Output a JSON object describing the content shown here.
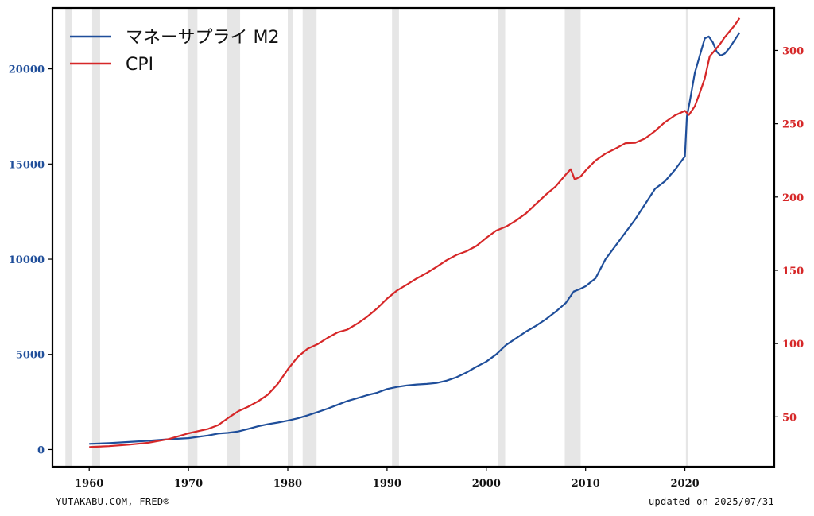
{
  "chart_data": {
    "type": "line",
    "series": [
      {
        "name": "マネーサプライ M2",
        "axis": "left",
        "color": "#1f4e9a",
        "points": [
          [
            1960.0,
            300
          ],
          [
            1962.0,
            340
          ],
          [
            1964.0,
            400
          ],
          [
            1966.0,
            460
          ],
          [
            1968.0,
            540
          ],
          [
            1970.0,
            600
          ],
          [
            1972.0,
            740
          ],
          [
            1973.0,
            840
          ],
          [
            1974.0,
            880
          ],
          [
            1975.0,
            950
          ],
          [
            1976.0,
            1080
          ],
          [
            1977.0,
            1220
          ],
          [
            1978.0,
            1330
          ],
          [
            1979.0,
            1420
          ],
          [
            1980.0,
            1520
          ],
          [
            1981.0,
            1640
          ],
          [
            1982.0,
            1800
          ],
          [
            1983.0,
            1970
          ],
          [
            1984.0,
            2150
          ],
          [
            1985.0,
            2350
          ],
          [
            1986.0,
            2550
          ],
          [
            1987.0,
            2700
          ],
          [
            1988.0,
            2860
          ],
          [
            1989.0,
            2990
          ],
          [
            1990.0,
            3180
          ],
          [
            1991.0,
            3290
          ],
          [
            1992.0,
            3370
          ],
          [
            1993.0,
            3420
          ],
          [
            1994.0,
            3450
          ],
          [
            1995.0,
            3500
          ],
          [
            1996.0,
            3620
          ],
          [
            1997.0,
            3800
          ],
          [
            1998.0,
            4050
          ],
          [
            1999.0,
            4350
          ],
          [
            2000.0,
            4620
          ],
          [
            2001.0,
            5000
          ],
          [
            2002.0,
            5500
          ],
          [
            2003.0,
            5850
          ],
          [
            2004.0,
            6200
          ],
          [
            2005.0,
            6500
          ],
          [
            2006.0,
            6850
          ],
          [
            2007.0,
            7250
          ],
          [
            2008.0,
            7700
          ],
          [
            2008.8,
            8300
          ],
          [
            2009.5,
            8450
          ],
          [
            2010.0,
            8580
          ],
          [
            2011.0,
            9000
          ],
          [
            2012.0,
            10000
          ],
          [
            2013.0,
            10700
          ],
          [
            2014.0,
            11400
          ],
          [
            2015.0,
            12100
          ],
          [
            2016.0,
            12900
          ],
          [
            2017.0,
            13700
          ],
          [
            2018.0,
            14100
          ],
          [
            2019.0,
            14700
          ],
          [
            2020.0,
            15400
          ],
          [
            2020.2,
            17500
          ],
          [
            2020.5,
            18300
          ],
          [
            2021.0,
            19800
          ],
          [
            2021.5,
            20700
          ],
          [
            2022.0,
            21600
          ],
          [
            2022.4,
            21700
          ],
          [
            2022.8,
            21400
          ],
          [
            2023.2,
            20900
          ],
          [
            2023.6,
            20700
          ],
          [
            2024.0,
            20800
          ],
          [
            2024.5,
            21100
          ],
          [
            2025.0,
            21500
          ],
          [
            2025.5,
            21900
          ]
        ]
      },
      {
        "name": "CPI",
        "axis": "right",
        "color": "#d62728",
        "points": [
          [
            1960.0,
            29.4
          ],
          [
            1962.0,
            30.0
          ],
          [
            1964.0,
            31.0
          ],
          [
            1966.0,
            32.4
          ],
          [
            1968.0,
            34.8
          ],
          [
            1970.0,
            38.8
          ],
          [
            1972.0,
            41.8
          ],
          [
            1973.0,
            44.4
          ],
          [
            1974.0,
            49.3
          ],
          [
            1975.0,
            53.8
          ],
          [
            1976.0,
            56.9
          ],
          [
            1977.0,
            60.6
          ],
          [
            1978.0,
            65.2
          ],
          [
            1979.0,
            72.6
          ],
          [
            1980.0,
            82.4
          ],
          [
            1981.0,
            90.9
          ],
          [
            1982.0,
            96.5
          ],
          [
            1983.0,
            99.6
          ],
          [
            1984.0,
            103.9
          ],
          [
            1985.0,
            107.6
          ],
          [
            1986.0,
            109.6
          ],
          [
            1987.0,
            113.6
          ],
          [
            1988.0,
            118.3
          ],
          [
            1989.0,
            124.0
          ],
          [
            1990.0,
            130.7
          ],
          [
            1991.0,
            136.2
          ],
          [
            1992.0,
            140.3
          ],
          [
            1993.0,
            144.5
          ],
          [
            1994.0,
            148.2
          ],
          [
            1995.0,
            152.4
          ],
          [
            1996.0,
            156.9
          ],
          [
            1997.0,
            160.5
          ],
          [
            1998.0,
            163.0
          ],
          [
            1999.0,
            166.6
          ],
          [
            2000.0,
            172.2
          ],
          [
            2001.0,
            177.1
          ],
          [
            2002.0,
            179.9
          ],
          [
            2003.0,
            184.0
          ],
          [
            2004.0,
            188.9
          ],
          [
            2005.0,
            195.3
          ],
          [
            2006.0,
            201.6
          ],
          [
            2007.0,
            207.3
          ],
          [
            2008.0,
            215.3
          ],
          [
            2008.5,
            219.0
          ],
          [
            2008.9,
            212.0
          ],
          [
            2009.5,
            214.0
          ],
          [
            2010.0,
            218.1
          ],
          [
            2011.0,
            224.9
          ],
          [
            2012.0,
            229.6
          ],
          [
            2013.0,
            233.0
          ],
          [
            2014.0,
            236.7
          ],
          [
            2015.0,
            237.0
          ],
          [
            2016.0,
            240.0
          ],
          [
            2017.0,
            245.1
          ],
          [
            2018.0,
            251.1
          ],
          [
            2019.0,
            255.7
          ],
          [
            2020.0,
            258.8
          ],
          [
            2020.4,
            256.0
          ],
          [
            2021.0,
            262.0
          ],
          [
            2021.5,
            271.0
          ],
          [
            2022.0,
            281.0
          ],
          [
            2022.5,
            296.0
          ],
          [
            2023.0,
            300.0
          ],
          [
            2023.5,
            304.0
          ],
          [
            2024.0,
            309.0
          ],
          [
            2024.5,
            313.0
          ],
          [
            2025.0,
            317.0
          ],
          [
            2025.5,
            322.0
          ]
        ]
      }
    ],
    "recessions": [
      [
        1957.6,
        1958.3
      ],
      [
        1960.3,
        1961.1
      ],
      [
        1969.9,
        1970.9
      ],
      [
        1973.9,
        1975.2
      ],
      [
        1980.0,
        1980.5
      ],
      [
        1981.5,
        1982.9
      ],
      [
        1990.5,
        1991.2
      ],
      [
        2001.2,
        2001.9
      ],
      [
        2007.9,
        2009.5
      ],
      [
        2020.1,
        2020.3
      ]
    ],
    "xlim": [
      1956.3,
      2029.0
    ],
    "ylim_left": [
      -900,
      23200
    ],
    "ylim_right": [
      16,
      329
    ],
    "xticks": [
      1960,
      1970,
      1980,
      1990,
      2000,
      2010,
      2020
    ],
    "yticks_left": [
      0,
      5000,
      10000,
      15000,
      20000
    ],
    "yticks_right": [
      50,
      100,
      150,
      200,
      250,
      300
    ],
    "left_tick_color": "#1f4e9a",
    "right_tick_color": "#d62728",
    "recession_color": "#e6e6e6",
    "legend_placement": "top-left",
    "grid": false
  },
  "footer": {
    "credit": "YUTAKABU.COM, FRED®",
    "updated": "updated on 2025/07/31"
  }
}
